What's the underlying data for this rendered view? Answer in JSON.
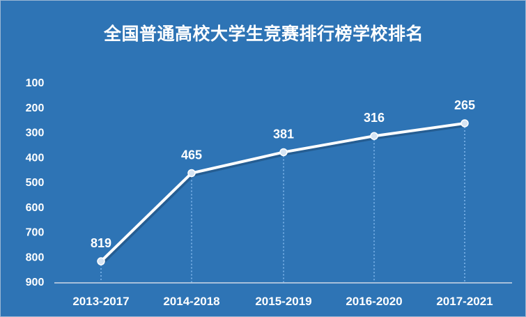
{
  "chart_data": {
    "type": "line",
    "title": "全国普通高校大学生竞赛排行榜学校排名",
    "categories": [
      "2013-2017",
      "2014-2018",
      "2015-2019",
      "2016-2020",
      "2017-2021"
    ],
    "series": [
      {
        "values": [
          819,
          465,
          381,
          316,
          265
        ]
      }
    ],
    "y_ticks": [
      "100",
      "200",
      "300",
      "400",
      "500",
      "600",
      "700",
      "800",
      "900"
    ],
    "ylim": [
      900,
      100
    ],
    "y_inverted": true,
    "grid": false,
    "colors": {
      "background": "#2e74b5",
      "line": "#ffffff",
      "marker_fill": "#d6e4f3",
      "drop_line": "#6ea8e0",
      "axis": "#cfd9e6",
      "text": "#ffffff"
    }
  }
}
